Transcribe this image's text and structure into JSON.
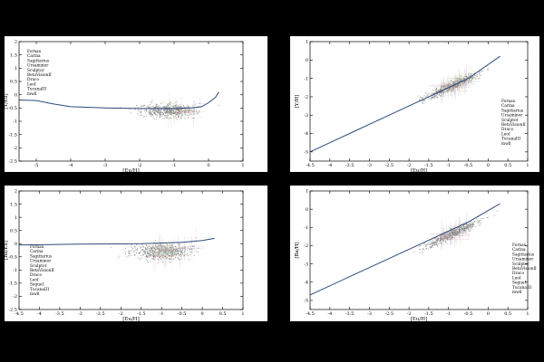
{
  "chart_data": [
    {
      "type": "scatter",
      "xlabel": "[Eu/H]",
      "ylabel": "[Y/Eu]",
      "xlim": [
        -5.5,
        1
      ],
      "ylim": [
        -2.5,
        2
      ],
      "xticks": [
        "-5",
        "-4",
        "-3",
        "-2",
        "-1",
        "0",
        "1"
      ],
      "yticks": [
        "-2.5",
        "-2",
        "-1.5",
        "-1",
        "-0.5",
        "0",
        "0.5",
        "1",
        "1.5",
        "2"
      ],
      "legend": [
        "Fornax",
        "Carina",
        "Sagittarius",
        "Ursaminor",
        "Sculptor",
        "BetaVisionII",
        "Draco",
        "LeoI",
        "TucanaIII",
        "mwll"
      ],
      "legend_position": "top-left",
      "model_line": {
        "x": [
          -5.5,
          -5,
          -4.5,
          -4,
          -3,
          -2,
          -1,
          -0.5,
          -0.2,
          0,
          0.2,
          0.3
        ],
        "y": [
          -0.2,
          -0.22,
          -0.35,
          -0.45,
          -0.5,
          -0.52,
          -0.52,
          -0.5,
          -0.45,
          -0.3,
          -0.1,
          0.1
        ]
      },
      "cloud": {
        "x_center": -1.2,
        "x_spread": 1.1,
        "y_center": -0.6,
        "y_spread": 0.3,
        "count": 520
      }
    },
    {
      "type": "scatter",
      "xlabel": "[Eu/H]",
      "ylabel": "[Y/H]",
      "xlim": [
        -4.5,
        1
      ],
      "ylim": [
        -5.5,
        1
      ],
      "xticks": [
        "-4.5",
        "-4",
        "-3.5",
        "-3",
        "-2.5",
        "-2",
        "-1.5",
        "-1",
        "-0.5",
        "0",
        "0.5",
        "1"
      ],
      "yticks": [
        "-5",
        "-4",
        "-3",
        "-2",
        "-1",
        "0",
        "1"
      ],
      "legend": [
        "Fornax",
        "Carina",
        "Sagittarius",
        "Ursaminor",
        "Sculptor",
        "BetaVisionII",
        "Draco",
        "LeoI",
        "TucanaIII",
        "mwll"
      ],
      "legend_position": "center-right",
      "model_line": {
        "x": [
          -4.5,
          -3.5,
          -2.5,
          -1.5,
          -0.5,
          0.3
        ],
        "y": [
          -5,
          -4,
          -3,
          -2,
          -1,
          0.2
        ]
      },
      "cloud": {
        "slope": 1.0,
        "intercept": -0.5,
        "x_center": -0.9,
        "x_spread": 0.9,
        "y_spread": 0.3,
        "count": 520
      }
    },
    {
      "type": "scatter",
      "xlabel": "[Eu/H]",
      "ylabel": "[Ba/Eu]",
      "xlim": [
        -4.5,
        1
      ],
      "ylim": [
        -2.5,
        2
      ],
      "xticks": [
        "-4.5",
        "-4",
        "-3.5",
        "-3",
        "-2.5",
        "-2",
        "-1.5",
        "-1",
        "-0.5",
        "0",
        "0.5",
        "1"
      ],
      "yticks": [
        "-2.5",
        "-2",
        "-1.5",
        "-1",
        "-0.5",
        "0",
        "0.5",
        "1",
        "1.5",
        "2"
      ],
      "legend": [
        "Fornax",
        "Carina",
        "Sagittarius",
        "Ursaminor",
        "Sculptor",
        "BetaVisionII",
        "Draco",
        "LeoI",
        "Segue1",
        "TucanaIII",
        "mwll"
      ],
      "legend_position": "left",
      "model_line": {
        "x": [
          -4.5,
          -3,
          -1.5,
          -0.5,
          0,
          0.3
        ],
        "y": [
          -0.05,
          -0.02,
          0.0,
          0.05,
          0.12,
          0.2
        ]
      },
      "cloud": {
        "x_center": -1.0,
        "x_spread": 1.0,
        "y_center": -0.3,
        "y_spread": 0.35,
        "count": 520
      }
    },
    {
      "type": "scatter",
      "xlabel": "[Eu/H]",
      "ylabel": "[Ba/H]",
      "xlim": [
        -4.5,
        1
      ],
      "ylim": [
        -5.5,
        1
      ],
      "xticks": [
        "-4.5",
        "-4",
        "-3.5",
        "-3",
        "-2.5",
        "-2",
        "-1.5",
        "-1",
        "-0.5",
        "0",
        "0.5",
        "1"
      ],
      "yticks": [
        "-5",
        "-4",
        "-3",
        "-2",
        "-1",
        "0",
        "1"
      ],
      "legend": [
        "Fornax",
        "Carina",
        "Sagittarius",
        "Ursaminor",
        "Sculptor",
        "BetaVisionII",
        "Draco",
        "LeoI",
        "Segue1",
        "TucanaIII",
        "mwll"
      ],
      "legend_position": "bottom-right",
      "model_line": {
        "x": [
          -4.5,
          -3.5,
          -2.5,
          -1.5,
          -0.5,
          0.3
        ],
        "y": [
          -4.7,
          -3.7,
          -2.7,
          -1.7,
          -0.7,
          0.3
        ]
      },
      "cloud": {
        "slope": 1.05,
        "intercept": -0.4,
        "x_center": -0.9,
        "x_spread": 0.9,
        "y_spread": 0.3,
        "count": 520
      }
    }
  ],
  "colors": {
    "background": "#000000",
    "panel": "#ffffff",
    "points": "#7a7a7a",
    "model_line": "#2d4a7a",
    "error_bars": [
      "#e0a0a0",
      "#a0c8e0",
      "#b0d8a0",
      "#e0c890",
      "#c8a0e0"
    ]
  }
}
